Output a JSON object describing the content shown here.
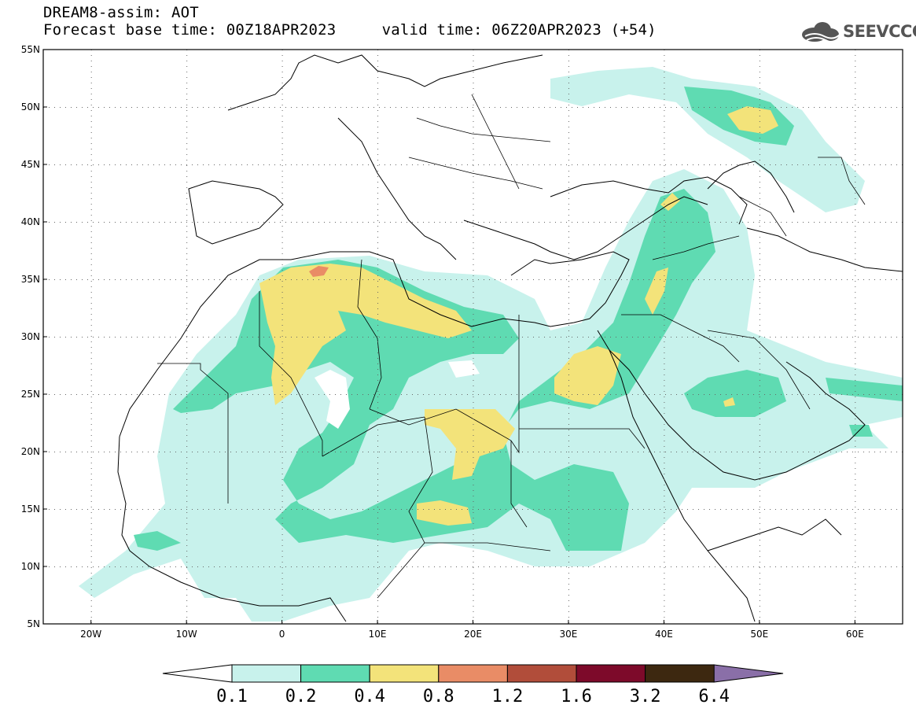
{
  "header": {
    "title_line1": "DREAM8-assim: AOT",
    "title_line2": "Forecast base time: 00Z18APR2023     valid time: 06Z20APR2023 (+54)",
    "logo_text": "SEEVCCC"
  },
  "map": {
    "lat_labels": [
      "55N",
      "50N",
      "45N",
      "40N",
      "35N",
      "30N",
      "25N",
      "20N",
      "15N",
      "10N",
      "5N"
    ],
    "lon_labels": [
      "20W",
      "10W",
      "0",
      "10E",
      "20E",
      "30E",
      "40E",
      "50E",
      "60E"
    ],
    "lat_range": [
      5,
      55
    ],
    "lon_range": [
      -25,
      65
    ]
  },
  "colorbar": {
    "levels": [
      "0.1",
      "0.2",
      "0.4",
      "0.8",
      "1.2",
      "1.6",
      "3.2",
      "6.4"
    ],
    "colors": [
      "#c8f2ec",
      "#5fdbb2",
      "#f3e37a",
      "#e98c66",
      "#b14d3a",
      "#7d0a2a",
      "#3d2810",
      "#8a6fa8"
    ]
  },
  "colors": {
    "c01": "#c8f2ec",
    "c02": "#5fdbb2",
    "c04": "#f3e37a",
    "c08": "#e98c66",
    "border": "#000000"
  }
}
